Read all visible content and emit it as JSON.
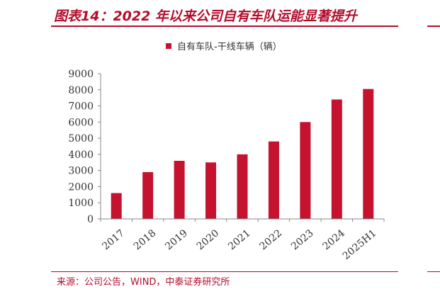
{
  "header": {
    "title": "图表14：2022 年以来公司自有车队运能显著提升"
  },
  "footer": {
    "source": "来源：公司公告，WIND，中泰证券研究所"
  },
  "colors": {
    "accent": "#b40d2c",
    "bar": "#c4122f"
  },
  "chart_data": {
    "type": "bar",
    "categories": [
      "2017",
      "2018",
      "2019",
      "2020",
      "2021",
      "2022",
      "2023",
      "2024",
      "2025H1"
    ],
    "series": [
      {
        "name": "自有车队-干线车辆（辆）",
        "values": [
          1600,
          2900,
          3600,
          3500,
          4000,
          4800,
          6000,
          7400,
          8050
        ]
      }
    ],
    "ylim": [
      0,
      9000
    ],
    "yticks": [
      0,
      1000,
      2000,
      3000,
      4000,
      5000,
      6000,
      7000,
      8000,
      9000
    ],
    "grid": false,
    "legend_position": "top-center"
  }
}
